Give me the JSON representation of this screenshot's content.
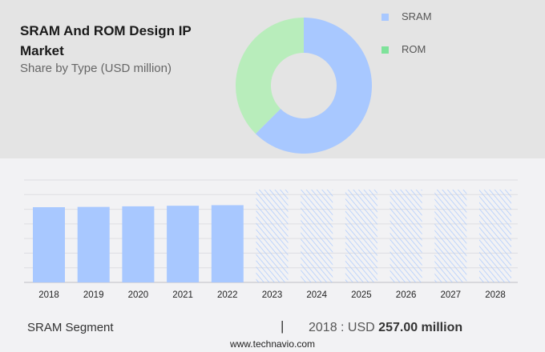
{
  "title": "SRAM And ROM Design IP Market",
  "subtitle": "Share by Type (USD million)",
  "legend": [
    {
      "label": "SRAM",
      "color": "#a8c8ff"
    },
    {
      "label": "ROM",
      "color": "#7ee29a"
    }
  ],
  "chart_data": [
    {
      "type": "pie",
      "donut": true,
      "slices": [
        {
          "name": "SRAM",
          "share": 62.5,
          "color": "#a8c8ff"
        },
        {
          "name": "ROM",
          "share": 37.5,
          "color": "#b8edbb"
        }
      ]
    },
    {
      "type": "bar",
      "categories": [
        "2018",
        "2019",
        "2020",
        "2021",
        "2022",
        "2023",
        "2024",
        "2025",
        "2026",
        "2027",
        "2028"
      ],
      "values": [
        257,
        258,
        260,
        262,
        264,
        null,
        null,
        null,
        null,
        null,
        null
      ],
      "forecast_categories": [
        "2023",
        "2024",
        "2025",
        "2026",
        "2027",
        "2028"
      ],
      "ylim": [
        0,
        350
      ],
      "grid": true,
      "bar_color": "#a8c8ff"
    }
  ],
  "footer": {
    "segment": "SRAM Segment",
    "separator": "|",
    "year_label": "2018 : USD",
    "value": "257.00 million",
    "site": "www.technavio.com"
  }
}
